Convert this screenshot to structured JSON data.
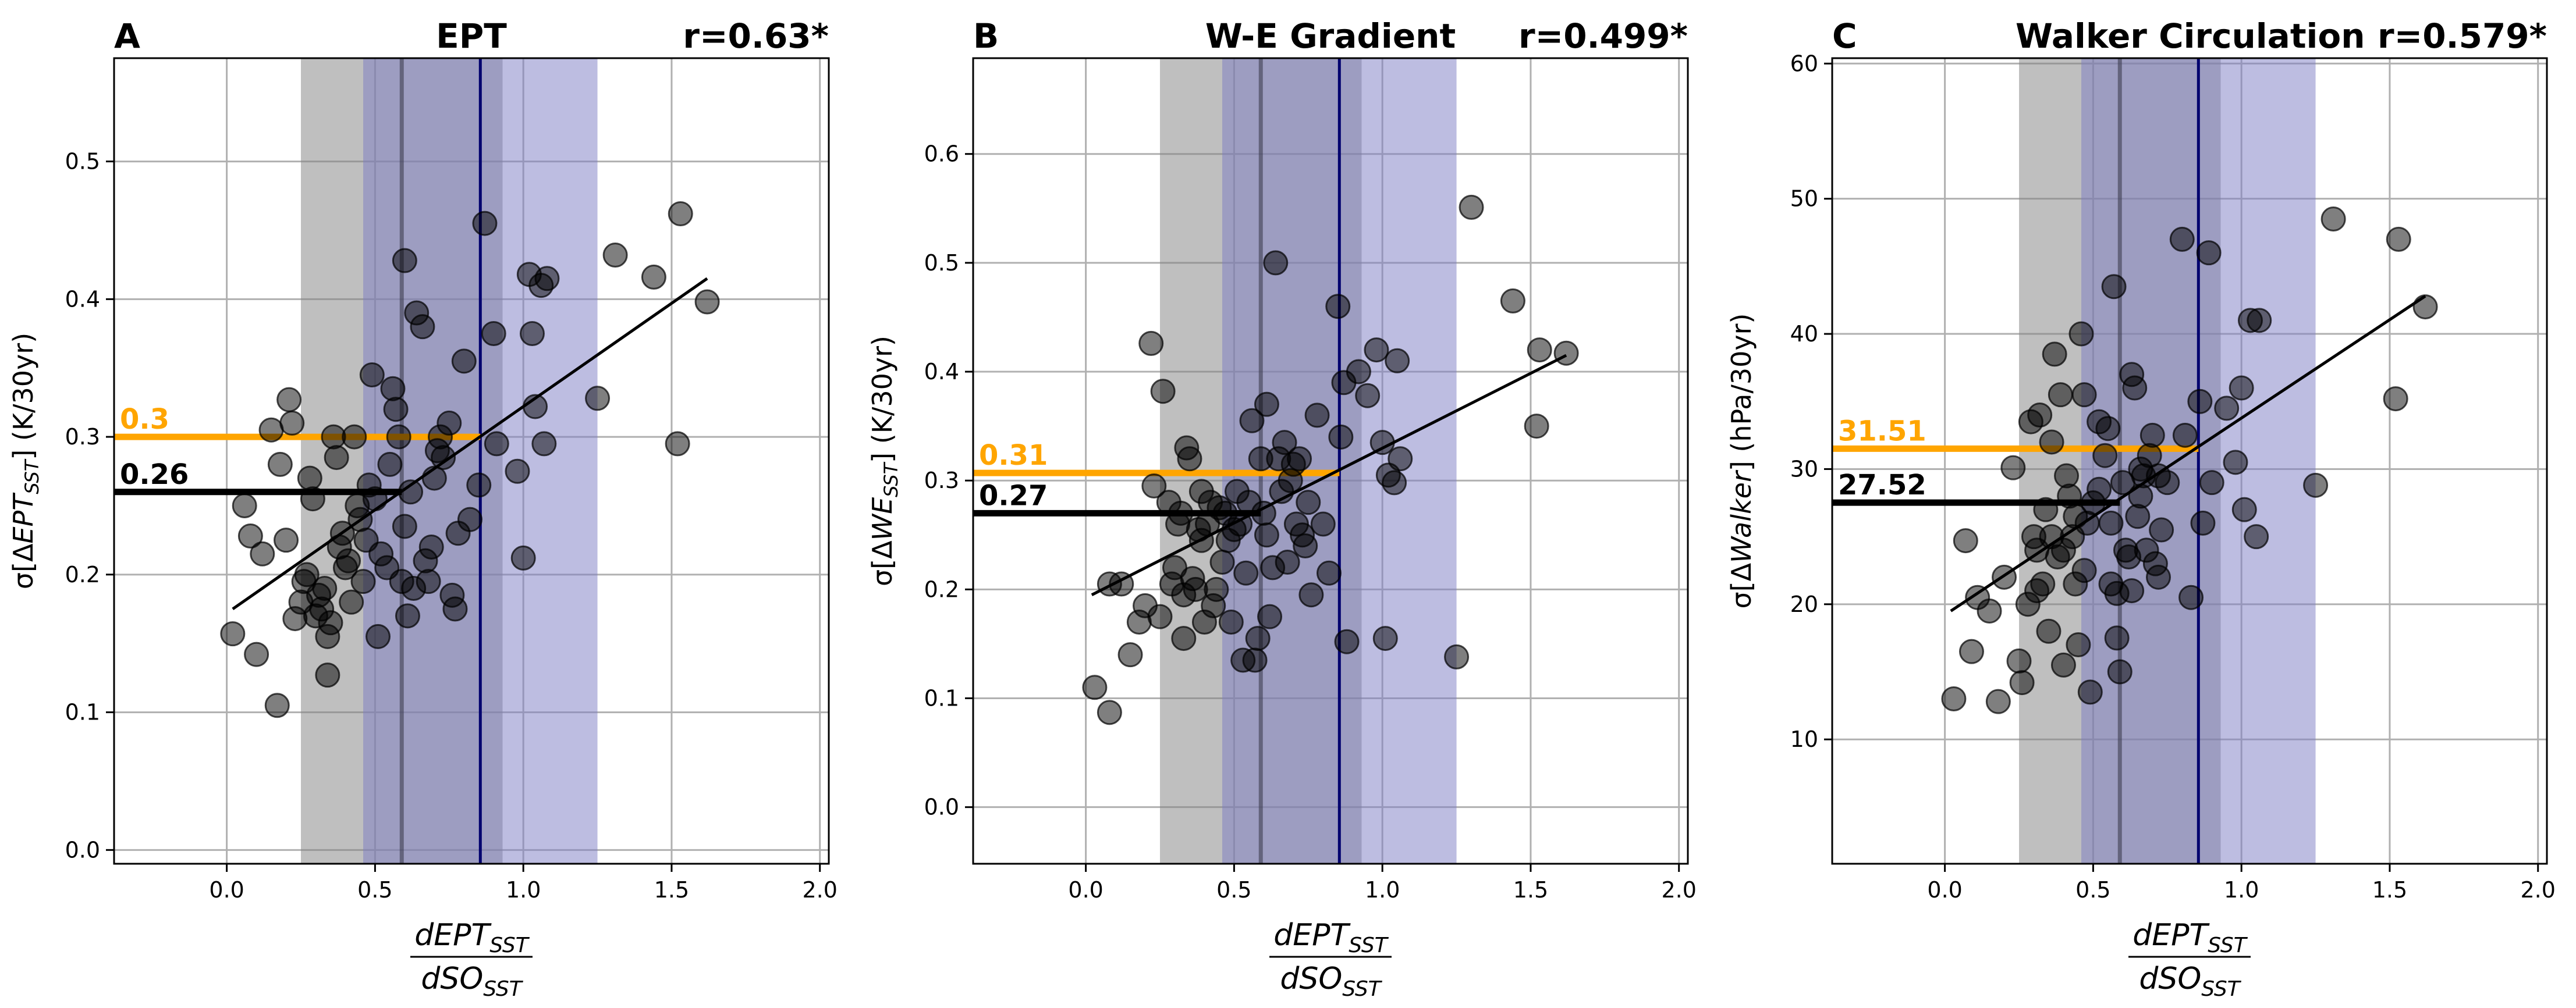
{
  "chart_data": [
    {
      "type": "scatter",
      "panel_letter": "A",
      "title": "EPT",
      "corr_label": "r=0.63*",
      "ylabel_pre": "σ[Δ",
      "ylabel_italic": "EPT",
      "ylabel_sub": "SST",
      "ylabel_post": "] (K/30yr)",
      "xlim": [
        -0.38,
        2.03
      ],
      "ylim": [
        -0.01,
        0.575
      ],
      "xticks": [
        0.0,
        0.5,
        1.0,
        1.5,
        2.0
      ],
      "xtick_labels": [
        "0.0",
        "0.5",
        "1.0",
        "1.5",
        "2.0"
      ],
      "yticks": [
        0.0,
        0.1,
        0.2,
        0.3,
        0.4,
        0.5
      ],
      "ytick_labels": [
        "0.0",
        "0.1",
        "0.2",
        "0.3",
        "0.4",
        "0.5"
      ],
      "gray_band": [
        0.25,
        0.93
      ],
      "gray_line": 0.59,
      "blue_band": [
        0.46,
        1.25
      ],
      "blue_line": 0.855,
      "orange_value": 0.3,
      "orange_label": "0.3",
      "black_value": 0.26,
      "black_label": "0.26",
      "fit": {
        "x": [
          0.02,
          1.62
        ],
        "y": [
          0.175,
          0.415
        ]
      },
      "points": [
        [
          0.02,
          0.157
        ],
        [
          0.1,
          0.142
        ],
        [
          0.17,
          0.105
        ],
        [
          0.34,
          0.127
        ],
        [
          0.08,
          0.228
        ],
        [
          0.06,
          0.25
        ],
        [
          0.12,
          0.215
        ],
        [
          0.15,
          0.305
        ],
        [
          0.18,
          0.28
        ],
        [
          0.2,
          0.225
        ],
        [
          0.21,
          0.327
        ],
        [
          0.22,
          0.31
        ],
        [
          0.23,
          0.168
        ],
        [
          0.25,
          0.18
        ],
        [
          0.26,
          0.195
        ],
        [
          0.27,
          0.2
        ],
        [
          0.28,
          0.27
        ],
        [
          0.29,
          0.255
        ],
        [
          0.3,
          0.17
        ],
        [
          0.31,
          0.185
        ],
        [
          0.32,
          0.175
        ],
        [
          0.33,
          0.19
        ],
        [
          0.34,
          0.155
        ],
        [
          0.35,
          0.165
        ],
        [
          0.36,
          0.3
        ],
        [
          0.37,
          0.285
        ],
        [
          0.38,
          0.22
        ],
        [
          0.39,
          0.23
        ],
        [
          0.4,
          0.205
        ],
        [
          0.41,
          0.21
        ],
        [
          0.42,
          0.18
        ],
        [
          0.43,
          0.3
        ],
        [
          0.44,
          0.25
        ],
        [
          0.45,
          0.24
        ],
        [
          0.46,
          0.195
        ],
        [
          0.47,
          0.225
        ],
        [
          0.48,
          0.265
        ],
        [
          0.49,
          0.345
        ],
        [
          0.5,
          0.255
        ],
        [
          0.51,
          0.155
        ],
        [
          0.52,
          0.215
        ],
        [
          0.54,
          0.205
        ],
        [
          0.55,
          0.28
        ],
        [
          0.56,
          0.335
        ],
        [
          0.57,
          0.32
        ],
        [
          0.58,
          0.3
        ],
        [
          0.59,
          0.195
        ],
        [
          0.6,
          0.235
        ],
        [
          0.61,
          0.17
        ],
        [
          0.62,
          0.26
        ],
        [
          0.63,
          0.19
        ],
        [
          0.64,
          0.39
        ],
        [
          0.66,
          0.38
        ],
        [
          0.67,
          0.21
        ],
        [
          0.68,
          0.195
        ],
        [
          0.69,
          0.22
        ],
        [
          0.7,
          0.27
        ],
        [
          0.71,
          0.29
        ],
        [
          0.72,
          0.3
        ],
        [
          0.73,
          0.285
        ],
        [
          0.75,
          0.31
        ],
        [
          0.76,
          0.185
        ],
        [
          0.77,
          0.175
        ],
        [
          0.78,
          0.23
        ],
        [
          0.8,
          0.355
        ],
        [
          0.82,
          0.24
        ],
        [
          0.85,
          0.265
        ],
        [
          0.87,
          0.455
        ],
        [
          0.9,
          0.375
        ],
        [
          0.91,
          0.295
        ],
        [
          0.6,
          0.428
        ],
        [
          0.98,
          0.275
        ],
        [
          1.0,
          0.212
        ],
        [
          1.02,
          0.418
        ],
        [
          1.03,
          0.375
        ],
        [
          1.04,
          0.322
        ],
        [
          1.06,
          0.41
        ],
        [
          1.07,
          0.295
        ],
        [
          1.08,
          0.415
        ],
        [
          1.25,
          0.328
        ],
        [
          1.31,
          0.432
        ],
        [
          1.44,
          0.416
        ],
        [
          1.52,
          0.295
        ],
        [
          1.53,
          0.462
        ],
        [
          1.62,
          0.398
        ]
      ]
    },
    {
      "type": "scatter",
      "panel_letter": "B",
      "title": "W-E Gradient",
      "corr_label": "r=0.499*",
      "ylabel_pre": "σ[Δ",
      "ylabel_italic": "WE",
      "ylabel_sub": "SST",
      "ylabel_post": "] (K/30yr)",
      "xlim": [
        -0.38,
        2.03
      ],
      "ylim": [
        -0.052,
        0.688
      ],
      "xticks": [
        0.0,
        0.5,
        1.0,
        1.5,
        2.0
      ],
      "xtick_labels": [
        "0.0",
        "0.5",
        "1.0",
        "1.5",
        "2.0"
      ],
      "yticks": [
        0.0,
        0.1,
        0.2,
        0.3,
        0.4,
        0.5,
        0.6
      ],
      "ytick_labels": [
        "0.0",
        "0.1",
        "0.2",
        "0.3",
        "0.4",
        "0.5",
        "0.6"
      ],
      "gray_band": [
        0.25,
        0.93
      ],
      "gray_line": 0.59,
      "blue_band": [
        0.46,
        1.25
      ],
      "blue_line": 0.855,
      "orange_value": 0.307,
      "orange_label": "0.31",
      "black_value": 0.27,
      "black_label": "0.27",
      "fit": {
        "x": [
          0.02,
          1.62
        ],
        "y": [
          0.195,
          0.415
        ]
      },
      "points": [
        [
          0.03,
          0.11
        ],
        [
          0.08,
          0.087
        ],
        [
          0.08,
          0.205
        ],
        [
          0.12,
          0.205
        ],
        [
          0.15,
          0.14
        ],
        [
          0.18,
          0.17
        ],
        [
          0.2,
          0.185
        ],
        [
          0.22,
          0.426
        ],
        [
          0.23,
          0.295
        ],
        [
          0.25,
          0.175
        ],
        [
          0.26,
          0.382
        ],
        [
          0.28,
          0.28
        ],
        [
          0.29,
          0.205
        ],
        [
          0.3,
          0.22
        ],
        [
          0.31,
          0.26
        ],
        [
          0.32,
          0.27
        ],
        [
          0.33,
          0.155
        ],
        [
          0.34,
          0.33
        ],
        [
          0.35,
          0.32
        ],
        [
          0.36,
          0.21
        ],
        [
          0.37,
          0.2
        ],
        [
          0.38,
          0.255
        ],
        [
          0.39,
          0.245
        ],
        [
          0.4,
          0.17
        ],
        [
          0.41,
          0.26
        ],
        [
          0.42,
          0.28
        ],
        [
          0.43,
          0.185
        ],
        [
          0.44,
          0.2
        ],
        [
          0.45,
          0.275
        ],
        [
          0.46,
          0.225
        ],
        [
          0.47,
          0.27
        ],
        [
          0.48,
          0.245
        ],
        [
          0.49,
          0.17
        ],
        [
          0.5,
          0.255
        ],
        [
          0.51,
          0.29
        ],
        [
          0.52,
          0.26
        ],
        [
          0.53,
          0.135
        ],
        [
          0.55,
          0.28
        ],
        [
          0.57,
          0.135
        ],
        [
          0.58,
          0.155
        ],
        [
          0.59,
          0.32
        ],
        [
          0.6,
          0.27
        ],
        [
          0.61,
          0.25
        ],
        [
          0.62,
          0.175
        ],
        [
          0.63,
          0.22
        ],
        [
          0.64,
          0.5
        ],
        [
          0.65,
          0.32
        ],
        [
          0.66,
          0.29
        ],
        [
          0.67,
          0.335
        ],
        [
          0.68,
          0.225
        ],
        [
          0.69,
          0.3
        ],
        [
          0.7,
          0.315
        ],
        [
          0.71,
          0.26
        ],
        [
          0.72,
          0.32
        ],
        [
          0.73,
          0.25
        ],
        [
          0.74,
          0.24
        ],
        [
          0.75,
          0.28
        ],
        [
          0.76,
          0.195
        ],
        [
          0.78,
          0.36
        ],
        [
          0.8,
          0.26
        ],
        [
          0.82,
          0.215
        ],
        [
          0.85,
          0.46
        ],
        [
          0.86,
          0.34
        ],
        [
          0.87,
          0.39
        ],
        [
          0.88,
          0.152
        ],
        [
          0.92,
          0.4
        ],
        [
          0.95,
          0.378
        ],
        [
          0.98,
          0.42
        ],
        [
          1.0,
          0.335
        ],
        [
          1.01,
          0.155
        ],
        [
          1.02,
          0.305
        ],
        [
          1.04,
          0.298
        ],
        [
          1.05,
          0.41
        ],
        [
          1.06,
          0.32
        ],
        [
          1.3,
          0.551
        ],
        [
          1.44,
          0.465
        ],
        [
          1.52,
          0.35
        ],
        [
          1.53,
          0.42
        ],
        [
          1.25,
          0.138
        ],
        [
          1.62,
          0.417
        ],
        [
          0.33,
          0.195
        ],
        [
          0.39,
          0.29
        ],
        [
          0.56,
          0.355
        ],
        [
          0.61,
          0.37
        ],
        [
          0.54,
          0.215
        ]
      ]
    },
    {
      "type": "scatter",
      "panel_letter": "C",
      "title": "Walker Circulation",
      "corr_label": "r=0.579*",
      "ylabel_pre": "σ[Δ",
      "ylabel_italic": "Walker",
      "ylabel_sub": "",
      "ylabel_post": "] (hPa/30yr)",
      "xlim": [
        -0.38,
        2.03
      ],
      "ylim": [
        0.8,
        60.4
      ],
      "xticks": [
        0.0,
        0.5,
        1.0,
        1.5,
        2.0
      ],
      "xtick_labels": [
        "0.0",
        "0.5",
        "1.0",
        "1.5",
        "2.0"
      ],
      "yticks": [
        10,
        20,
        30,
        40,
        50,
        60
      ],
      "ytick_labels": [
        "10",
        "20",
        "30",
        "40",
        "50",
        "60"
      ],
      "gray_band": [
        0.25,
        0.93
      ],
      "gray_line": 0.59,
      "blue_band": [
        0.46,
        1.25
      ],
      "blue_line": 0.855,
      "orange_value": 31.51,
      "orange_label": "31.51",
      "black_value": 27.52,
      "black_label": "27.52",
      "fit": {
        "x": [
          0.02,
          1.62
        ],
        "y": [
          19.5,
          42.8
        ]
      },
      "points": [
        [
          0.03,
          13
        ],
        [
          0.07,
          24.7
        ],
        [
          0.09,
          16.5
        ],
        [
          0.11,
          20.5
        ],
        [
          0.15,
          19.5
        ],
        [
          0.18,
          12.8
        ],
        [
          0.2,
          22
        ],
        [
          0.23,
          30.1
        ],
        [
          0.25,
          15.8
        ],
        [
          0.26,
          14.2
        ],
        [
          0.28,
          20
        ],
        [
          0.29,
          33.5
        ],
        [
          0.3,
          25
        ],
        [
          0.31,
          21
        ],
        [
          0.32,
          34
        ],
        [
          0.33,
          21.5
        ],
        [
          0.34,
          27
        ],
        [
          0.35,
          18
        ],
        [
          0.36,
          32
        ],
        [
          0.37,
          38.5
        ],
        [
          0.38,
          23.5
        ],
        [
          0.39,
          35.5
        ],
        [
          0.4,
          15.5
        ],
        [
          0.41,
          29.5
        ],
        [
          0.42,
          28
        ],
        [
          0.43,
          25
        ],
        [
          0.44,
          21.5
        ],
        [
          0.45,
          17
        ],
        [
          0.46,
          40
        ],
        [
          0.47,
          35.5
        ],
        [
          0.48,
          26
        ],
        [
          0.49,
          13.5
        ],
        [
          0.5,
          27.5
        ],
        [
          0.52,
          28.5
        ],
        [
          0.54,
          31
        ],
        [
          0.55,
          33
        ],
        [
          0.56,
          21.5
        ],
        [
          0.57,
          43.5
        ],
        [
          0.58,
          17.5
        ],
        [
          0.59,
          15
        ],
        [
          0.6,
          29
        ],
        [
          0.61,
          24
        ],
        [
          0.62,
          23.5
        ],
        [
          0.63,
          37
        ],
        [
          0.64,
          36
        ],
        [
          0.65,
          26.5
        ],
        [
          0.66,
          30
        ],
        [
          0.67,
          29.5
        ],
        [
          0.68,
          24
        ],
        [
          0.69,
          31
        ],
        [
          0.7,
          32.5
        ],
        [
          0.71,
          23
        ],
        [
          0.72,
          22
        ],
        [
          0.73,
          25.5
        ],
        [
          0.75,
          29
        ],
        [
          0.8,
          47
        ],
        [
          0.81,
          32.5
        ],
        [
          0.83,
          20.5
        ],
        [
          0.86,
          35
        ],
        [
          0.87,
          26
        ],
        [
          0.89,
          46
        ],
        [
          0.9,
          29
        ],
        [
          0.95,
          34.5
        ],
        [
          0.98,
          30.5
        ],
        [
          1.0,
          36
        ],
        [
          1.01,
          27
        ],
        [
          1.03,
          41
        ],
        [
          1.05,
          25
        ],
        [
          1.06,
          41
        ],
        [
          1.25,
          28.8
        ],
        [
          1.31,
          48.5
        ],
        [
          1.52,
          35.2
        ],
        [
          1.53,
          47
        ],
        [
          1.62,
          42
        ],
        [
          0.36,
          25
        ],
        [
          0.4,
          24
        ],
        [
          0.52,
          33.5
        ],
        [
          0.56,
          26
        ],
        [
          0.58,
          20.8
        ],
        [
          0.44,
          26.5
        ],
        [
          0.47,
          22.5
        ],
        [
          0.63,
          21
        ],
        [
          0.66,
          28
        ],
        [
          0.72,
          29.5
        ],
        [
          0.31,
          24
        ]
      ]
    }
  ],
  "xlabel": {
    "numerator_base": "dEPT",
    "numerator_sub": "SST",
    "denominator_base": "dSO",
    "denominator_sub": "SST"
  },
  "colors": {
    "scatter": "#000000",
    "gray_band": "#808080",
    "blue_band": "#7b7bc4",
    "blue_line": "#00006e",
    "gray_line": "#3c3c4e",
    "orange": "#ffa500",
    "black_line": "#000000",
    "grid": "#b0b0b0"
  }
}
